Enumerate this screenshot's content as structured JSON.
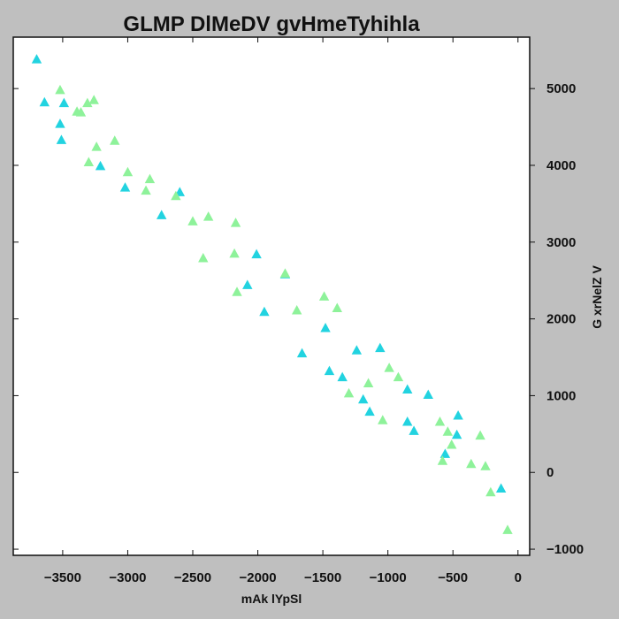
{
  "chart_data": {
    "type": "scatter",
    "title": "GLMP DlMeDV gvHmeTyhihla",
    "xlabel": "mAk lYpSl",
    "ylabel": "G xrNelZ V",
    "xlim": [
      -3880,
      90
    ],
    "ylim": [
      -1080,
      5670
    ],
    "x_ticks": [
      -3500,
      -3000,
      -2500,
      -2000,
      -1500,
      -1000,
      -500,
      0
    ],
    "x_tick_labels": [
      "−3500",
      "−3000",
      "−2500",
      "−2000",
      "−1500",
      "−1000",
      "−500",
      "0"
    ],
    "y_ticks": [
      -1000,
      0,
      1000,
      2000,
      3000,
      4000,
      5000
    ],
    "y_tick_labels": [
      "−1000",
      "0",
      "1000",
      "2000",
      "3000",
      "4000",
      "5000"
    ],
    "grid": false,
    "y_axis_side": "right",
    "marker": "triangle",
    "series": [
      {
        "color": "#22d3e0",
        "points": [
          [
            -3700,
            5380
          ],
          [
            -3640,
            4820
          ],
          [
            -3490,
            4810
          ],
          [
            -3520,
            4540
          ],
          [
            -3510,
            4330
          ],
          [
            -3210,
            3990
          ],
          [
            -3020,
            3710
          ],
          [
            -2600,
            3650
          ],
          [
            -2740,
            3350
          ],
          [
            -2010,
            2840
          ],
          [
            -1790,
            2580
          ],
          [
            -2080,
            2440
          ],
          [
            -1950,
            2090
          ],
          [
            -1480,
            1880
          ],
          [
            -1660,
            1550
          ],
          [
            -1240,
            1590
          ],
          [
            -1060,
            1620
          ],
          [
            -1450,
            1320
          ],
          [
            -1350,
            1240
          ],
          [
            -850,
            1080
          ],
          [
            -1190,
            950
          ],
          [
            -1140,
            790
          ],
          [
            -690,
            1010
          ],
          [
            -850,
            660
          ],
          [
            -800,
            540
          ],
          [
            -460,
            740
          ],
          [
            -470,
            490
          ],
          [
            -560,
            240
          ],
          [
            -130,
            -210
          ]
        ]
      },
      {
        "color": "#8ef29a",
        "points": [
          [
            -3520,
            4980
          ],
          [
            -3260,
            4850
          ],
          [
            -3310,
            4810
          ],
          [
            -3390,
            4700
          ],
          [
            -3360,
            4690
          ],
          [
            -3240,
            4240
          ],
          [
            -3100,
            4320
          ],
          [
            -3300,
            4040
          ],
          [
            -3000,
            3910
          ],
          [
            -2830,
            3820
          ],
          [
            -2860,
            3670
          ],
          [
            -2630,
            3600
          ],
          [
            -2380,
            3330
          ],
          [
            -2500,
            3270
          ],
          [
            -2170,
            3250
          ],
          [
            -2180,
            2850
          ],
          [
            -2420,
            2790
          ],
          [
            -1790,
            2590
          ],
          [
            -1490,
            2290
          ],
          [
            -1390,
            2140
          ],
          [
            -2160,
            2350
          ],
          [
            -1700,
            2110
          ],
          [
            -990,
            1360
          ],
          [
            -920,
            1240
          ],
          [
            -1150,
            1160
          ],
          [
            -1300,
            1030
          ],
          [
            -1040,
            680
          ],
          [
            -600,
            660
          ],
          [
            -540,
            530
          ],
          [
            -510,
            360
          ],
          [
            -580,
            150
          ],
          [
            -290,
            480
          ],
          [
            -360,
            110
          ],
          [
            -250,
            80
          ],
          [
            -210,
            -260
          ],
          [
            -80,
            -750
          ]
        ]
      }
    ]
  }
}
